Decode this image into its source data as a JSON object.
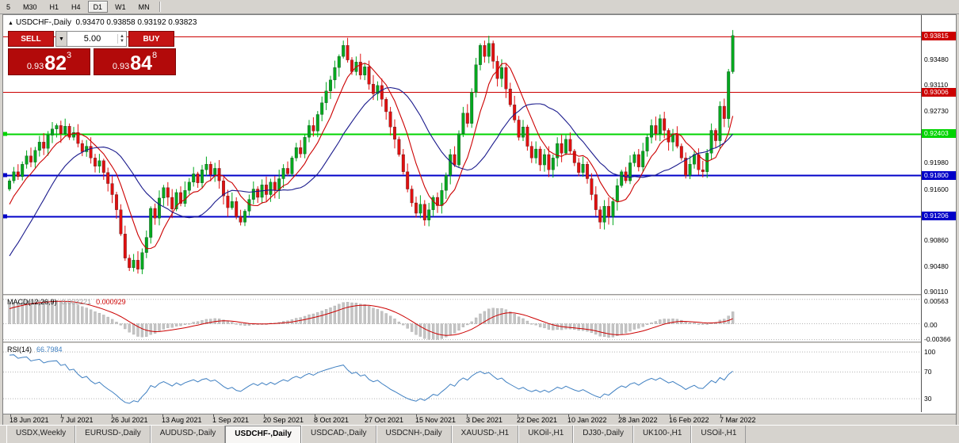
{
  "colors": {
    "up": "#00a81e",
    "down": "#e01010",
    "ma_fast": "#cc0000",
    "ma_slow": "#1a1a8c",
    "macd_hist": "#c4c4c4",
    "macd_signal": "#cc0000",
    "rsi_line": "#3e7fc1",
    "level_dotted": "#b4b4b4"
  },
  "toolbar": {
    "timeframes": [
      "5",
      "M30",
      "H1",
      "H4",
      "D1",
      "W1",
      "MN"
    ],
    "active": "D1"
  },
  "chart": {
    "symbol": "USDCHF-,Daily",
    "ohlc": "0.93470 0.93858 0.93192 0.93823",
    "lines": [
      {
        "price": 0.93815,
        "label": "0.93815",
        "color": "#cc0000",
        "width": 1,
        "marker": false
      },
      {
        "price": 0.93006,
        "label": "0.93006",
        "color": "#cc0000",
        "width": 1,
        "marker": false
      },
      {
        "price": 0.92403,
        "label": "0.92403",
        "color": "#00d400",
        "width": 2,
        "marker": true
      },
      {
        "price": 0.918,
        "label": "0.91800",
        "color": "#0000c8",
        "width": 2,
        "marker": true
      },
      {
        "price": 0.91206,
        "label": "0.91206",
        "color": "#0000c8",
        "width": 2,
        "marker": true
      }
    ],
    "scale_labels": [
      {
        "v": 0.9348,
        "t": "0.93480"
      },
      {
        "v": 0.9311,
        "t": "0.93110"
      },
      {
        "v": 0.9273,
        "t": "0.92730"
      },
      {
        "v": 0.9198,
        "t": "0.91980"
      },
      {
        "v": 0.916,
        "t": "0.91600"
      },
      {
        "v": 0.9086,
        "t": "0.90860"
      },
      {
        "v": 0.9048,
        "t": "0.90480"
      },
      {
        "v": 0.9011,
        "t": "0.90110"
      }
    ],
    "ma_seed": [
      0.8975,
      0.898,
      0.8978,
      0.8985,
      0.8982,
      0.899,
      0.8988,
      0.8995,
      0.8992,
      0.9,
      0.8998,
      0.9005,
      0.901,
      0.9008,
      0.9015,
      0.903,
      0.905,
      0.907,
      0.909,
      0.911,
      0.9125,
      0.9138,
      0.9148,
      0.9156,
      0.9164
    ],
    "closes": [
      0.9172,
      0.9185,
      0.9178,
      0.9196,
      0.9208,
      0.9199,
      0.9216,
      0.9228,
      0.9219,
      0.9238,
      0.9247,
      0.9252,
      0.924,
      0.9251,
      0.9235,
      0.9242,
      0.9226,
      0.9214,
      0.9222,
      0.9205,
      0.9193,
      0.9201,
      0.9184,
      0.9168,
      0.9152,
      0.913,
      0.9095,
      0.906,
      0.9046,
      0.9057,
      0.9044,
      0.9068,
      0.909,
      0.9132,
      0.9118,
      0.9147,
      0.9162,
      0.9148,
      0.9131,
      0.9155,
      0.9139,
      0.9158,
      0.917,
      0.9182,
      0.9169,
      0.9188,
      0.9196,
      0.9181,
      0.919,
      0.9172,
      0.915,
      0.9133,
      0.9142,
      0.912,
      0.9112,
      0.9128,
      0.9145,
      0.916,
      0.9148,
      0.9166,
      0.9152,
      0.917,
      0.9158,
      0.9175,
      0.919,
      0.9182,
      0.9205,
      0.922,
      0.9211,
      0.9235,
      0.9252,
      0.9244,
      0.9268,
      0.9285,
      0.9302,
      0.9318,
      0.9336,
      0.9352,
      0.9368,
      0.9347,
      0.933,
      0.9344,
      0.9325,
      0.9337,
      0.9312,
      0.9298,
      0.931,
      0.929,
      0.9272,
      0.925,
      0.9232,
      0.921,
      0.9185,
      0.916,
      0.914,
      0.9125,
      0.9138,
      0.9115,
      0.913,
      0.9148,
      0.9136,
      0.9158,
      0.918,
      0.921,
      0.9195,
      0.924,
      0.927,
      0.9255,
      0.93,
      0.934,
      0.9368,
      0.9352,
      0.9371,
      0.9345,
      0.932,
      0.9336,
      0.9305,
      0.9282,
      0.926,
      0.9235,
      0.925,
      0.9222,
      0.9205,
      0.9218,
      0.9195,
      0.921,
      0.9188,
      0.9205,
      0.9226,
      0.9212,
      0.9232,
      0.9215,
      0.9198,
      0.9184,
      0.9196,
      0.9175,
      0.9152,
      0.913,
      0.9112,
      0.9135,
      0.912,
      0.9142,
      0.9165,
      0.9185,
      0.9172,
      0.9198,
      0.921,
      0.9192,
      0.9215,
      0.9235,
      0.9252,
      0.924,
      0.9262,
      0.9245,
      0.9228,
      0.924,
      0.9222,
      0.9205,
      0.918,
      0.9196,
      0.921,
      0.9188,
      0.9185,
      0.9212,
      0.9245,
      0.923,
      0.928,
      0.9262,
      0.933,
      0.93823
    ],
    "dates": [
      "18 Jun 2021",
      "7 Jul 2021",
      "26 Jul 2021",
      "13 Aug 2021",
      "1 Sep 2021",
      "20 Sep 2021",
      "8 Oct 2021",
      "27 Oct 2021",
      "15 Nov 2021",
      "3 Dec 2021",
      "22 Dec 2021",
      "10 Jan 2022",
      "28 Jan 2022",
      "16 Feb 2022",
      "7 Mar 2022"
    ]
  },
  "trade": {
    "sell_label": "SELL",
    "buy_label": "BUY",
    "volume": "5.00",
    "sell_price_small": "0.93",
    "sell_price_big": "82",
    "sell_price_sup": "3",
    "buy_price_small": "0.93",
    "buy_price_big": "84",
    "buy_price_sup": "8"
  },
  "macd": {
    "name": "MACD(12,26,9)",
    "value_main": "0.003221",
    "value_signal": "0.000929",
    "axis_labels": [
      {
        "v": 0.00563,
        "t": "0.00563"
      },
      {
        "v": 0,
        "t": "0.00"
      },
      {
        "v": -0.00366,
        "t": "-0.00366"
      }
    ]
  },
  "rsi": {
    "name": "RSI(14)",
    "value": "66.7984",
    "axis_labels": [
      {
        "v": 100,
        "t": "100"
      },
      {
        "v": 70,
        "t": "70"
      },
      {
        "v": 30,
        "t": "30"
      }
    ]
  },
  "tabs": {
    "items": [
      "USDX,Weekly",
      "EURUSD-,Daily",
      "AUDUSD-,Daily",
      "USDCHF-,Daily",
      "USDCAD-,Daily",
      "USDCNH-,Daily",
      "XAUUSD-,H1",
      "UKOil-,H1",
      "DJ30-,Daily",
      "UK100-,H1",
      "USOil-,H1"
    ],
    "active_index": 3
  }
}
